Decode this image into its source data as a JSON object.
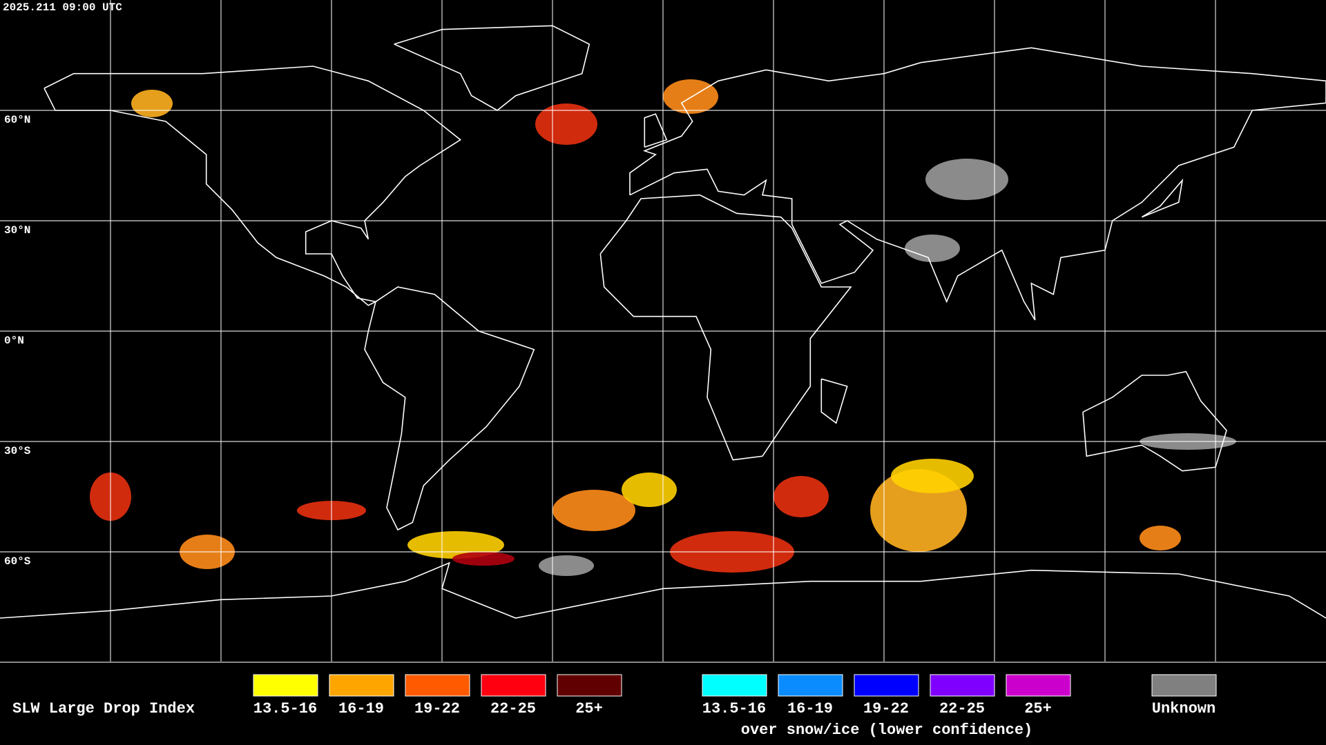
{
  "timestamp": "2025.211 09:00 UTC",
  "map": {
    "latitude_labels": [
      "60°N",
      "30°N",
      "0°N",
      "30°S",
      "60°S"
    ]
  },
  "legend": {
    "title": "SLW Large Drop Index",
    "items": [
      {
        "label": "13.5-16",
        "color": "#ffff00"
      },
      {
        "label": "16-19",
        "color": "#ffa500"
      },
      {
        "label": "19-22",
        "color": "#ff5a00"
      },
      {
        "label": "22-25",
        "color": "#ff0010"
      },
      {
        "label": "25+",
        "color": "#600000"
      }
    ],
    "snow_ice_items": [
      {
        "label": "13.5-16",
        "color": "#00ffff"
      },
      {
        "label": "16-19",
        "color": "#0a8cff"
      },
      {
        "label": "19-22",
        "color": "#0000ff"
      },
      {
        "label": "22-25",
        "color": "#7f00ff"
      },
      {
        "label": "25+",
        "color": "#cc00cc"
      }
    ],
    "snow_ice_caption": "over snow/ice (lower confidence)",
    "unknown": {
      "label": "Unknown",
      "color": "#808080"
    }
  }
}
